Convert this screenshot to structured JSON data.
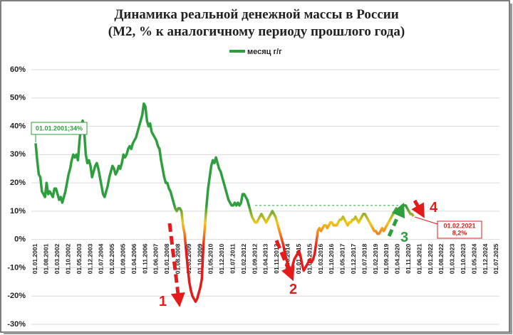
{
  "chart_data": {
    "type": "line",
    "title": "Динамика реальной денежной массы в России",
    "subtitle": "(М2, % к аналогичному периоду прошлого года)",
    "categories": [
      "01.01.2001",
      null,
      null,
      null,
      null,
      null,
      null,
      "01.08.2001",
      null,
      null,
      null,
      null,
      null,
      null,
      "01.03.2002",
      null,
      null,
      null,
      null,
      null,
      null,
      "01.10.2002",
      null,
      null,
      null,
      null,
      null,
      null,
      "01.05.2003",
      null,
      null,
      null,
      null,
      null,
      null,
      "01.12.2003",
      null,
      null,
      null,
      null,
      null,
      null,
      "01.07.2004",
      null,
      null,
      null,
      null,
      null,
      null,
      "01.02.2005",
      null,
      null,
      null,
      null,
      null,
      null,
      "01.09.2005",
      null,
      null,
      null,
      null,
      null,
      null,
      "01.04.2006",
      null,
      null,
      null,
      null,
      null,
      null,
      "01.11.2006",
      null,
      null,
      null,
      null,
      null,
      null,
      "01.06.2007",
      null,
      null,
      null,
      null,
      null,
      null,
      "01.01.2008",
      null,
      null,
      null,
      null,
      null,
      null,
      "01.08.2008",
      null,
      null,
      null,
      null,
      null,
      null,
      "01.03.2009",
      null,
      null,
      null,
      null,
      null,
      null,
      "01.10.2009",
      null,
      null,
      null,
      null,
      null,
      null,
      "01.05.2010",
      null,
      null,
      null,
      null,
      null,
      null,
      "01.12.2010",
      null,
      null,
      null,
      null,
      null,
      null,
      "01.07.2011",
      null,
      null,
      null,
      null,
      null,
      null,
      "01.02.2012",
      null,
      null,
      null,
      null,
      null,
      null,
      "01.09.2012",
      null,
      null,
      null,
      null,
      null,
      null,
      "01.04.2013",
      null,
      null,
      null,
      null,
      null,
      null,
      "01.11.2013",
      null,
      null,
      null,
      null,
      null,
      null,
      "01.06.2014",
      null,
      null,
      null,
      null,
      null,
      null,
      "01.01.2015",
      null,
      null,
      null,
      null,
      null,
      null,
      "01.08.2015",
      null,
      null,
      null,
      null,
      null,
      null,
      "01.03.2016",
      null,
      null,
      null,
      null,
      null,
      null,
      "01.10.2016",
      null,
      null,
      null,
      null,
      null,
      null,
      "01.05.2017",
      null,
      null,
      null,
      null,
      null,
      null,
      "01.12.2017",
      null,
      null,
      null,
      null,
      null,
      null,
      "01.07.2018",
      null,
      null,
      null,
      null,
      null,
      null,
      "01.02.2019",
      null,
      null,
      null,
      null,
      null,
      null,
      "01.09.2019",
      null,
      null,
      null,
      null,
      null,
      null,
      "01.04.2020",
      null,
      null,
      null,
      null,
      null,
      null,
      "01.11.2020",
      null,
      null,
      null,
      null,
      null,
      null,
      "01.06.2021",
      null,
      null,
      null,
      null,
      null,
      null,
      "01.01.2022",
      null,
      null,
      null,
      null,
      null,
      null,
      "01.08.2022",
      null,
      null,
      null,
      null,
      null,
      null,
      "01.03.2023",
      null,
      null,
      null,
      null,
      null,
      null,
      "01.10.2023",
      null,
      null,
      null,
      null,
      null,
      null,
      "01.05.2024",
      null,
      null,
      null,
      null,
      null,
      null,
      "01.12.2024",
      null,
      null,
      null,
      null,
      null,
      null,
      "01.07.2025"
    ],
    "series": [
      {
        "name": "месяц г/г",
        "values": [
          34,
          28,
          23,
          22,
          17,
          16,
          15,
          20,
          16,
          17,
          16,
          15,
          18,
          18,
          16,
          14,
          15,
          13,
          15,
          17,
          20,
          23,
          25,
          28,
          30,
          29,
          30,
          28,
          35,
          40,
          42,
          38,
          30,
          27,
          28,
          26,
          22,
          24,
          26,
          27,
          25,
          22,
          19,
          16,
          15,
          17,
          19,
          22,
          24,
          26,
          25,
          23,
          24,
          26,
          25,
          27,
          30,
          29,
          30,
          32,
          33,
          32,
          34,
          35,
          36,
          38,
          40,
          42,
          44,
          48,
          47,
          42,
          40,
          41,
          38,
          37,
          36,
          35,
          33,
          32,
          28,
          25,
          22,
          20,
          20,
          18,
          17,
          15,
          13,
          11,
          10,
          11,
          11,
          10,
          5,
          2,
          -4,
          -10,
          -15,
          -18,
          -20,
          -21,
          -22,
          -21,
          -19,
          -17,
          -14,
          -2,
          5,
          12,
          18,
          22,
          26,
          28,
          27,
          29,
          27,
          25,
          24,
          22,
          20,
          18,
          16,
          14,
          13,
          12,
          12,
          13,
          12,
          13,
          12,
          13,
          16,
          16,
          15,
          14,
          12,
          10,
          8,
          7,
          6,
          6,
          7,
          8,
          9,
          8,
          7,
          6,
          7,
          8,
          9,
          10,
          9,
          8,
          6,
          4,
          2,
          0,
          -2,
          -5,
          -7,
          -9,
          -10,
          -11,
          -9,
          -7,
          -6,
          -5,
          -4,
          -6,
          -9,
          -11,
          -10,
          -9,
          -8,
          -7,
          -8,
          -7,
          -5,
          -1,
          3,
          4,
          3,
          4,
          5,
          5,
          4,
          5,
          6,
          6,
          5,
          5,
          5,
          6,
          7,
          7,
          8,
          7,
          6,
          5,
          6,
          6,
          7,
          7,
          8,
          7,
          6,
          7,
          8,
          9,
          9,
          8,
          7,
          6,
          5,
          4,
          3,
          3,
          2,
          2,
          3,
          4,
          3,
          4,
          5,
          6,
          7,
          8,
          9,
          10,
          11,
          10,
          10,
          11,
          12,
          12,
          12,
          11,
          10,
          9,
          9,
          8.2,
          null,
          null,
          null,
          null,
          null,
          null,
          null,
          null,
          null,
          null,
          null,
          null,
          null,
          null,
          null,
          null,
          null,
          null,
          null,
          null,
          null,
          null,
          null,
          null,
          null,
          null,
          null,
          null,
          null,
          null,
          null,
          null,
          null,
          null,
          null,
          null,
          null,
          null,
          null,
          null,
          null,
          null,
          null,
          null,
          null,
          null,
          null,
          null,
          null,
          null,
          null,
          null,
          null
        ]
      }
    ],
    "color_scale": [
      {
        "value": 12,
        "color": "#2e9e3e"
      },
      {
        "value": 6,
        "color": "#f5c518"
      },
      {
        "value": 2,
        "color": "#f08020"
      },
      {
        "value": -3,
        "color": "#e41b1b"
      }
    ],
    "reference_level": 12,
    "ylim": [
      -30,
      60
    ],
    "yticks": [
      {
        "value": -30,
        "label": "-30%"
      },
      {
        "value": -20,
        "label": "-20%"
      },
      {
        "value": -10,
        "label": "-10%"
      },
      {
        "value": 0,
        "label": "0%"
      },
      {
        "value": 10,
        "label": "10%"
      },
      {
        "value": 20,
        "label": "20%"
      },
      {
        "value": 30,
        "label": "30%"
      },
      {
        "value": 40,
        "label": "40%"
      },
      {
        "value": 50,
        "label": "50%"
      },
      {
        "value": 60,
        "label": "60%"
      }
    ],
    "grid": true,
    "annotations": {
      "first": "01.01.2001;34%",
      "last_date": "01.02.2021",
      "last_value": "8,2%",
      "n1": "1",
      "n2": "2",
      "n3": "3",
      "n4": "4"
    }
  }
}
